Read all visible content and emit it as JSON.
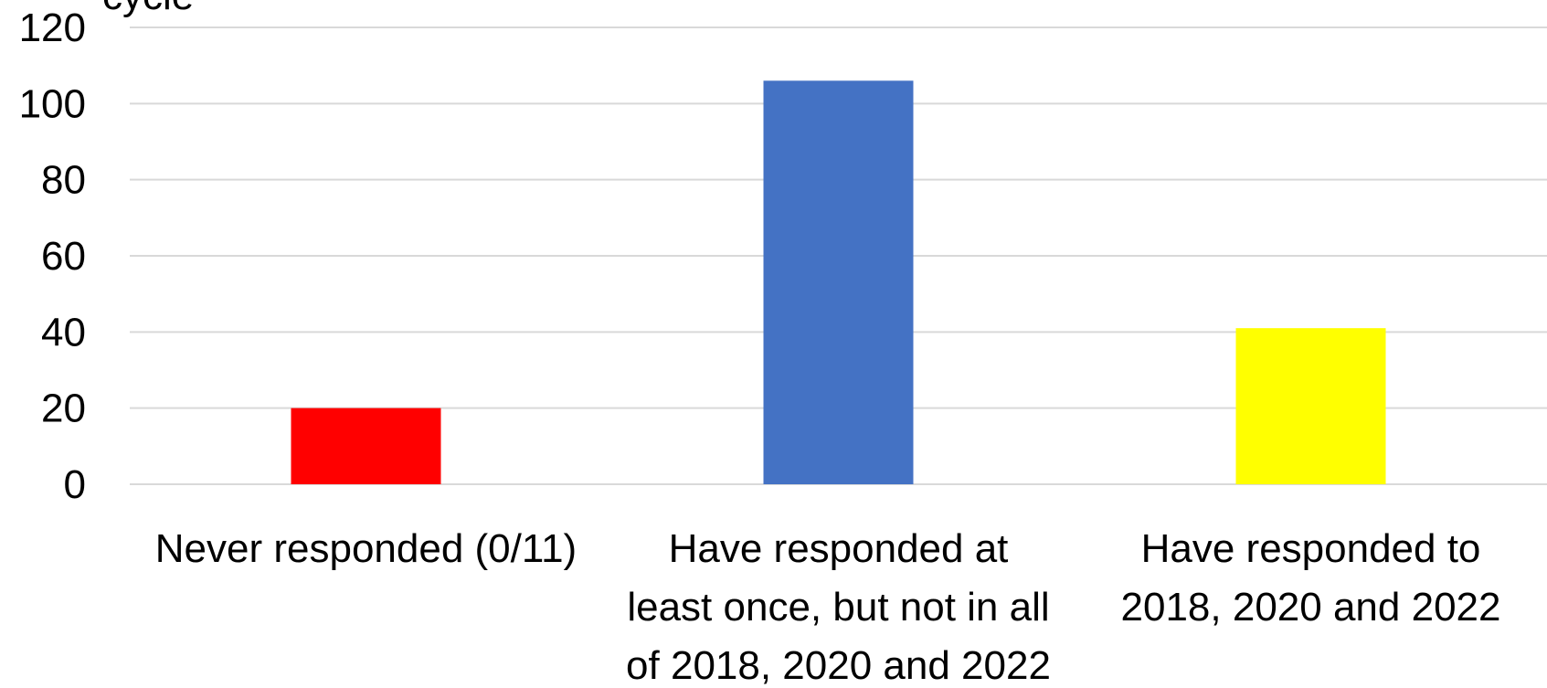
{
  "chart_data": {
    "type": "bar",
    "title": "",
    "xlabel": "",
    "ylabel": "cycle",
    "ylim": [
      0,
      120
    ],
    "yticks": [
      0,
      20,
      40,
      60,
      80,
      100,
      120
    ],
    "grid": true,
    "legend": "none",
    "categories": [
      [
        "Never responded (0/11)"
      ],
      [
        "Have responded at",
        "least once, but not in all",
        "of 2018, 2020 and 2022"
      ],
      [
        "Have responded to",
        "2018, 2020 and 2022"
      ]
    ],
    "values": [
      20,
      106,
      41
    ],
    "colors": [
      "#ff0000",
      "#4472c4",
      "#ffff00"
    ]
  }
}
